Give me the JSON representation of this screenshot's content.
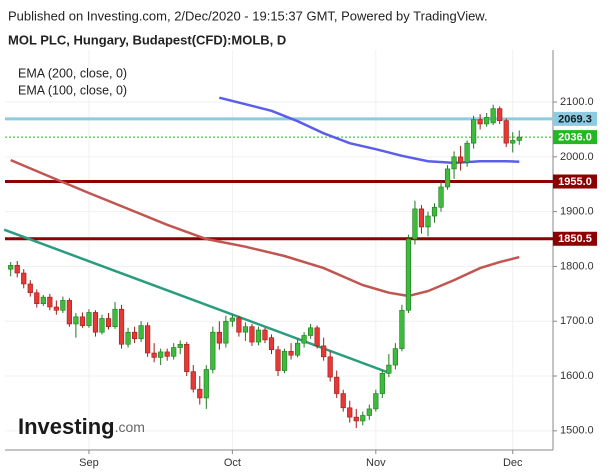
{
  "chart_data": {
    "type": "candlestick",
    "source": "Published on Investing.com, 2/Dec/2020 - 19:15:37 GMT, Powered by TradingView.",
    "title": "MOL PLC, Hungary, Budapest(CFD):MOLB, D",
    "watermark": {
      "brand": "Investing",
      "suffix": ".com"
    },
    "categories": [
      null,
      null,
      null,
      null,
      null,
      null,
      null,
      null,
      null,
      null,
      null,
      null,
      "Sep",
      null,
      null,
      null,
      null,
      null,
      null,
      null,
      null,
      null,
      null,
      null,
      null,
      null,
      null,
      null,
      null,
      null,
      null,
      null,
      null,
      null,
      "Oct",
      null,
      null,
      null,
      null,
      null,
      null,
      null,
      null,
      null,
      null,
      null,
      null,
      null,
      null,
      null,
      null,
      null,
      null,
      null,
      null,
      null,
      "Nov",
      null,
      null,
      null,
      null,
      null,
      null,
      null,
      null,
      null,
      null,
      null,
      null,
      null,
      null,
      null,
      null,
      null,
      null,
      null,
      null,
      "Dec",
      null
    ],
    "open": [
      1795,
      1802,
      1788,
      1768,
      1752,
      1732,
      1744,
      1726,
      1720,
      1738,
      1695,
      1708,
      1692,
      1716,
      1680,
      1705,
      1690,
      1722,
      1658,
      1680,
      1668,
      1692,
      1642,
      1634,
      1644,
      1636,
      1652,
      1658,
      1608,
      1576,
      1560,
      1612,
      1680,
      1660,
      1700,
      1706,
      1680,
      1690,
      1662,
      1684,
      1670,
      1648,
      1610,
      1645,
      1638,
      1660,
      1674,
      1688,
      1655,
      1635,
      1598,
      1568,
      1542,
      1525,
      1518,
      1528,
      1540,
      1568,
      1605,
      1620,
      1650,
      1720,
      1850,
      1905,
      1872,
      1892,
      1908,
      1945,
      1978,
      2000,
      1990,
      2025,
      2068,
      2060,
      2062,
      2088,
      2066,
      2025,
      2030
    ],
    "high": [
      1808,
      1810,
      1795,
      1775,
      1758,
      1748,
      1750,
      1738,
      1745,
      1742,
      1715,
      1716,
      1722,
      1720,
      1712,
      1715,
      1735,
      1730,
      1688,
      1690,
      1700,
      1698,
      1660,
      1650,
      1650,
      1660,
      1665,
      1662,
      1620,
      1600,
      1620,
      1690,
      1700,
      1710,
      1712,
      1710,
      1698,
      1695,
      1690,
      1688,
      1676,
      1655,
      1650,
      1660,
      1668,
      1680,
      1695,
      1692,
      1670,
      1645,
      1610,
      1575,
      1555,
      1540,
      1535,
      1548,
      1575,
      1610,
      1640,
      1660,
      1730,
      1858,
      1920,
      1912,
      1900,
      1915,
      1955,
      1985,
      2010,
      2020,
      2030,
      2075,
      2078,
      2080,
      2095,
      2092,
      2070,
      2045,
      2048
    ],
    "low": [
      1782,
      1780,
      1760,
      1745,
      1725,
      1728,
      1720,
      1712,
      1715,
      1690,
      1670,
      1688,
      1688,
      1672,
      1676,
      1685,
      1686,
      1650,
      1652,
      1660,
      1662,
      1635,
      1625,
      1620,
      1628,
      1630,
      1640,
      1600,
      1570,
      1548,
      1540,
      1605,
      1648,
      1652,
      1690,
      1672,
      1664,
      1655,
      1656,
      1660,
      1640,
      1600,
      1605,
      1630,
      1634,
      1652,
      1668,
      1650,
      1628,
      1590,
      1560,
      1535,
      1515,
      1505,
      1510,
      1520,
      1535,
      1560,
      1598,
      1612,
      1645,
      1715,
      1840,
      1860,
      1855,
      1880,
      1900,
      1940,
      1960,
      1975,
      1982,
      2015,
      2050,
      2055,
      2058,
      2060,
      2018,
      2008,
      2022
    ],
    "close": [
      1802,
      1788,
      1768,
      1752,
      1732,
      1744,
      1726,
      1720,
      1738,
      1695,
      1708,
      1692,
      1716,
      1680,
      1705,
      1690,
      1722,
      1658,
      1680,
      1668,
      1692,
      1642,
      1634,
      1644,
      1636,
      1652,
      1658,
      1608,
      1576,
      1560,
      1612,
      1680,
      1660,
      1700,
      1706,
      1680,
      1690,
      1662,
      1684,
      1666,
      1648,
      1610,
      1645,
      1638,
      1660,
      1674,
      1688,
      1655,
      1635,
      1598,
      1568,
      1542,
      1525,
      1518,
      1528,
      1540,
      1568,
      1605,
      1620,
      1650,
      1720,
      1850,
      1905,
      1872,
      1892,
      1908,
      1945,
      1978,
      2000,
      1990,
      2025,
      2068,
      2060,
      2072,
      2088,
      2066,
      2025,
      2030,
      2036
    ],
    "up_color": "#3dbb3d",
    "down_color": "#e53935",
    "series": [
      {
        "name": "EMA (200, close, 0)",
        "color": "#5b5ee8",
        "x": [
          32,
          36,
          40,
          44,
          48,
          52,
          56,
          60,
          64,
          68,
          72,
          76,
          78
        ],
        "values": [
          2108,
          2096,
          2084,
          2065,
          2043,
          2025,
          2014,
          2002,
          1992,
          1989,
          1992,
          1992,
          1991
        ]
      },
      {
        "name": "EMA (100, close, 0)",
        "color": "#c0564f",
        "x": [
          0,
          6,
          12,
          18,
          24,
          30,
          36,
          42,
          48,
          54,
          58,
          61,
          64,
          68,
          72,
          75,
          78
        ],
        "values": [
          1994,
          1964,
          1934,
          1905,
          1876,
          1850,
          1836,
          1819,
          1797,
          1766,
          1752,
          1746,
          1755,
          1775,
          1797,
          1808,
          1817
        ]
      }
    ],
    "trendline": {
      "color": "#2a9d7f",
      "x": [
        -1,
        58
      ],
      "values": [
        1867,
        1606
      ]
    },
    "levels": [
      {
        "value": 2069.3,
        "label": "2069.3",
        "color": "#8ccbe0",
        "label_color": "#1a1a1a",
        "style": "thick"
      },
      {
        "value": 2036,
        "label": "2036.0",
        "color": "#22b822",
        "label_color": "#ffffff",
        "style": "dotted"
      },
      {
        "value": 1955,
        "label": "1955.0",
        "color": "#8b0000",
        "label_color": "#ffffff",
        "style": "thick"
      },
      {
        "value": 1850.5,
        "label": "1850.5",
        "color": "#8b0000",
        "label_color": "#ffffff",
        "style": "thick"
      }
    ],
    "ylim": [
      1465,
      2195
    ],
    "yticks": [
      {
        "value": 1500,
        "label": "1500.0"
      },
      {
        "value": 1600,
        "label": "1600.0"
      },
      {
        "value": 1700,
        "label": "1700.0"
      },
      {
        "value": 1800,
        "label": "1800.0"
      },
      {
        "value": 1900,
        "label": "1900.0"
      },
      {
        "value": 2000,
        "label": "2000.0"
      },
      {
        "value": 2100,
        "label": "2100.0"
      }
    ],
    "grid": true
  }
}
